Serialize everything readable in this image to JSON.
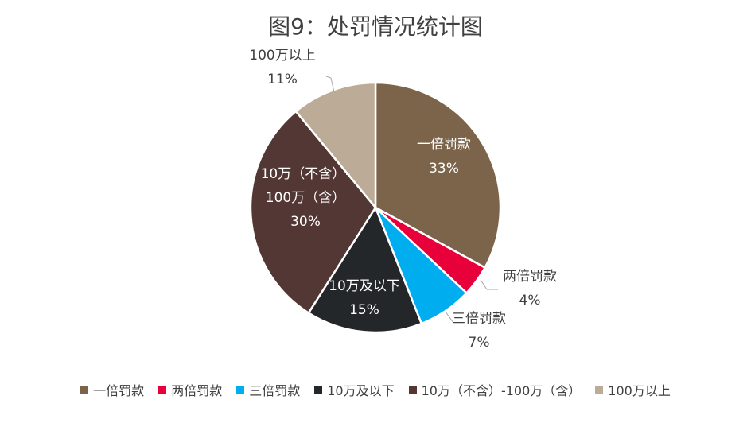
{
  "chart_data": {
    "type": "pie",
    "title": "图9：处罚情况统计图",
    "categories": [
      "一倍罚款",
      "两倍罚款",
      "三倍罚款",
      "10万及以下",
      "10万（不含）-100万（含）",
      "100万以上"
    ],
    "label_lines": [
      [
        "一倍罚款"
      ],
      [
        "两倍罚款"
      ],
      [
        "三倍罚款"
      ],
      [
        "10万及以下"
      ],
      [
        "10万（不含）-",
        "100万（含）"
      ],
      [
        "100万以上"
      ]
    ],
    "values": [
      33,
      4,
      7,
      15,
      30,
      11
    ],
    "value_labels": [
      "33%",
      "4%",
      "7%",
      "15%",
      "30%",
      "11%"
    ],
    "colors": [
      "#7b6449",
      "#e8003b",
      "#00aeef",
      "#24272a",
      "#523734",
      "#bcab96"
    ],
    "label_colors": [
      "#ffffff",
      "#404040",
      "#404040",
      "#ffffff",
      "#ffffff",
      "#404040"
    ],
    "legend_position": "bottom"
  }
}
